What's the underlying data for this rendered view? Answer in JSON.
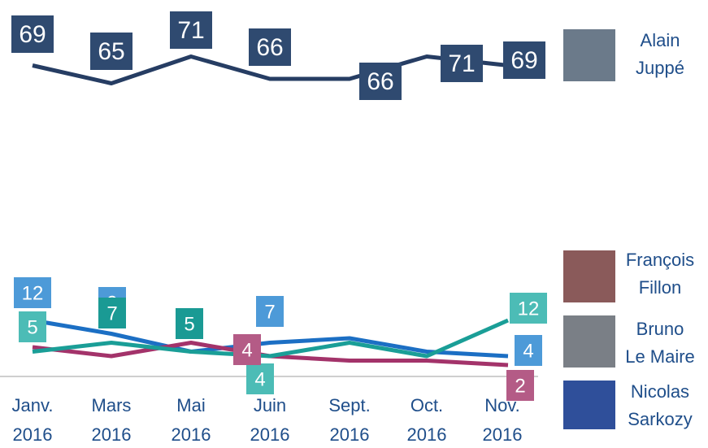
{
  "chart_data": {
    "type": "line",
    "categories": [
      "Janv. 2016",
      "Mars 2016",
      "Mai 2016",
      "Juin 2016",
      "Sept. 2016",
      "Oct. 2016",
      "Nov. 2016"
    ],
    "ylim": [
      0,
      80
    ],
    "series": [
      {
        "name": "Alain Juppé",
        "color": "#263d63",
        "values": [
          69,
          65,
          71,
          66,
          66,
          71,
          69
        ],
        "value_labels": [
          "69",
          "65",
          "71",
          "66",
          "66",
          "71",
          "69"
        ]
      },
      {
        "name": "François Fillon",
        "color": "#1a9e97",
        "values": [
          5,
          7,
          5,
          4,
          7,
          4,
          12
        ],
        "value_labels": [
          "5",
          "7",
          "5",
          "4",
          null,
          null,
          "12"
        ]
      },
      {
        "name": "Bruno Le Maire",
        "color": "#1c6fc4",
        "values": [
          12,
          9,
          5,
          7,
          8,
          5,
          4
        ],
        "value_labels": [
          "12",
          "9",
          null,
          "7",
          null,
          null,
          "4"
        ]
      },
      {
        "name": "Nicolas Sarkozy",
        "color": "#a3336a",
        "values": [
          6,
          4,
          7,
          4,
          3,
          3,
          2
        ],
        "value_labels": [
          null,
          null,
          null,
          "4",
          null,
          null,
          "2"
        ]
      }
    ]
  }
}
